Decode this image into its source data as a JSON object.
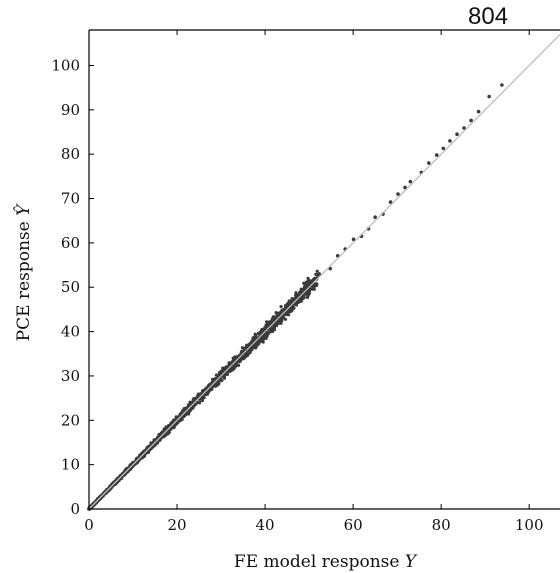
{
  "page_label": "804",
  "chart_data": {
    "type": "scatter",
    "title": "",
    "xlabel": "FE model response",
    "xlabel_symbol": "Y",
    "ylabel": "PCE response",
    "ylabel_symbol": "Ŷ",
    "xlim": [
      0,
      107
    ],
    "ylim": [
      0,
      108
    ],
    "x_ticks": [
      0,
      20,
      40,
      60,
      80,
      100
    ],
    "y_ticks": [
      0,
      10,
      20,
      30,
      40,
      50,
      60,
      70,
      80,
      90,
      100
    ],
    "grid": false,
    "legend": "none",
    "reference_line": {
      "from": [
        0,
        0
      ],
      "to": [
        107,
        107
      ],
      "color": "#bdbdbd"
    },
    "marker_color": "#3a3a3a",
    "dense_band": {
      "x_range": [
        0,
        52
      ],
      "relative_spread": 0.05,
      "note_hidden": true
    },
    "sample_points": [
      [
        0.5,
        0.6
      ],
      [
        1.2,
        1.0
      ],
      [
        2.0,
        2.3
      ],
      [
        3.1,
        2.9
      ],
      [
        4.0,
        4.2
      ],
      [
        5.2,
        5.0
      ],
      [
        6.5,
        6.8
      ],
      [
        8.0,
        7.7
      ],
      [
        10.1,
        10.4
      ],
      [
        12.5,
        12.1
      ],
      [
        15.0,
        15.3
      ],
      [
        17.8,
        17.5
      ],
      [
        20.2,
        20.6
      ],
      [
        23.5,
        23.1
      ],
      [
        26.0,
        26.4
      ],
      [
        29.4,
        29.0
      ],
      [
        32.0,
        32.5
      ],
      [
        35.5,
        35.1
      ],
      [
        38.0,
        38.4
      ],
      [
        41.2,
        40.8
      ],
      [
        44.0,
        44.5
      ],
      [
        47.5,
        47.0
      ],
      [
        50.0,
        50.6
      ],
      [
        52.3,
        53.0
      ],
      [
        54.8,
        54.2
      ],
      [
        56.5,
        57.1
      ],
      [
        58.2,
        58.6
      ],
      [
        60.1,
        60.8
      ],
      [
        61.9,
        61.5
      ],
      [
        63.5,
        63.2
      ],
      [
        65.0,
        65.8
      ],
      [
        66.8,
        66.5
      ],
      [
        68.5,
        69.2
      ],
      [
        70.2,
        71.0
      ],
      [
        71.8,
        72.5
      ],
      [
        73.0,
        73.8
      ],
      [
        75.5,
        75.9
      ],
      [
        77.2,
        78.0
      ],
      [
        79.0,
        79.8
      ],
      [
        80.5,
        81.3
      ],
      [
        82.0,
        83.0
      ],
      [
        83.6,
        84.5
      ],
      [
        85.2,
        85.9
      ],
      [
        86.8,
        87.6
      ],
      [
        88.5,
        89.6
      ],
      [
        90.9,
        93.0
      ],
      [
        93.8,
        95.6
      ]
    ]
  }
}
